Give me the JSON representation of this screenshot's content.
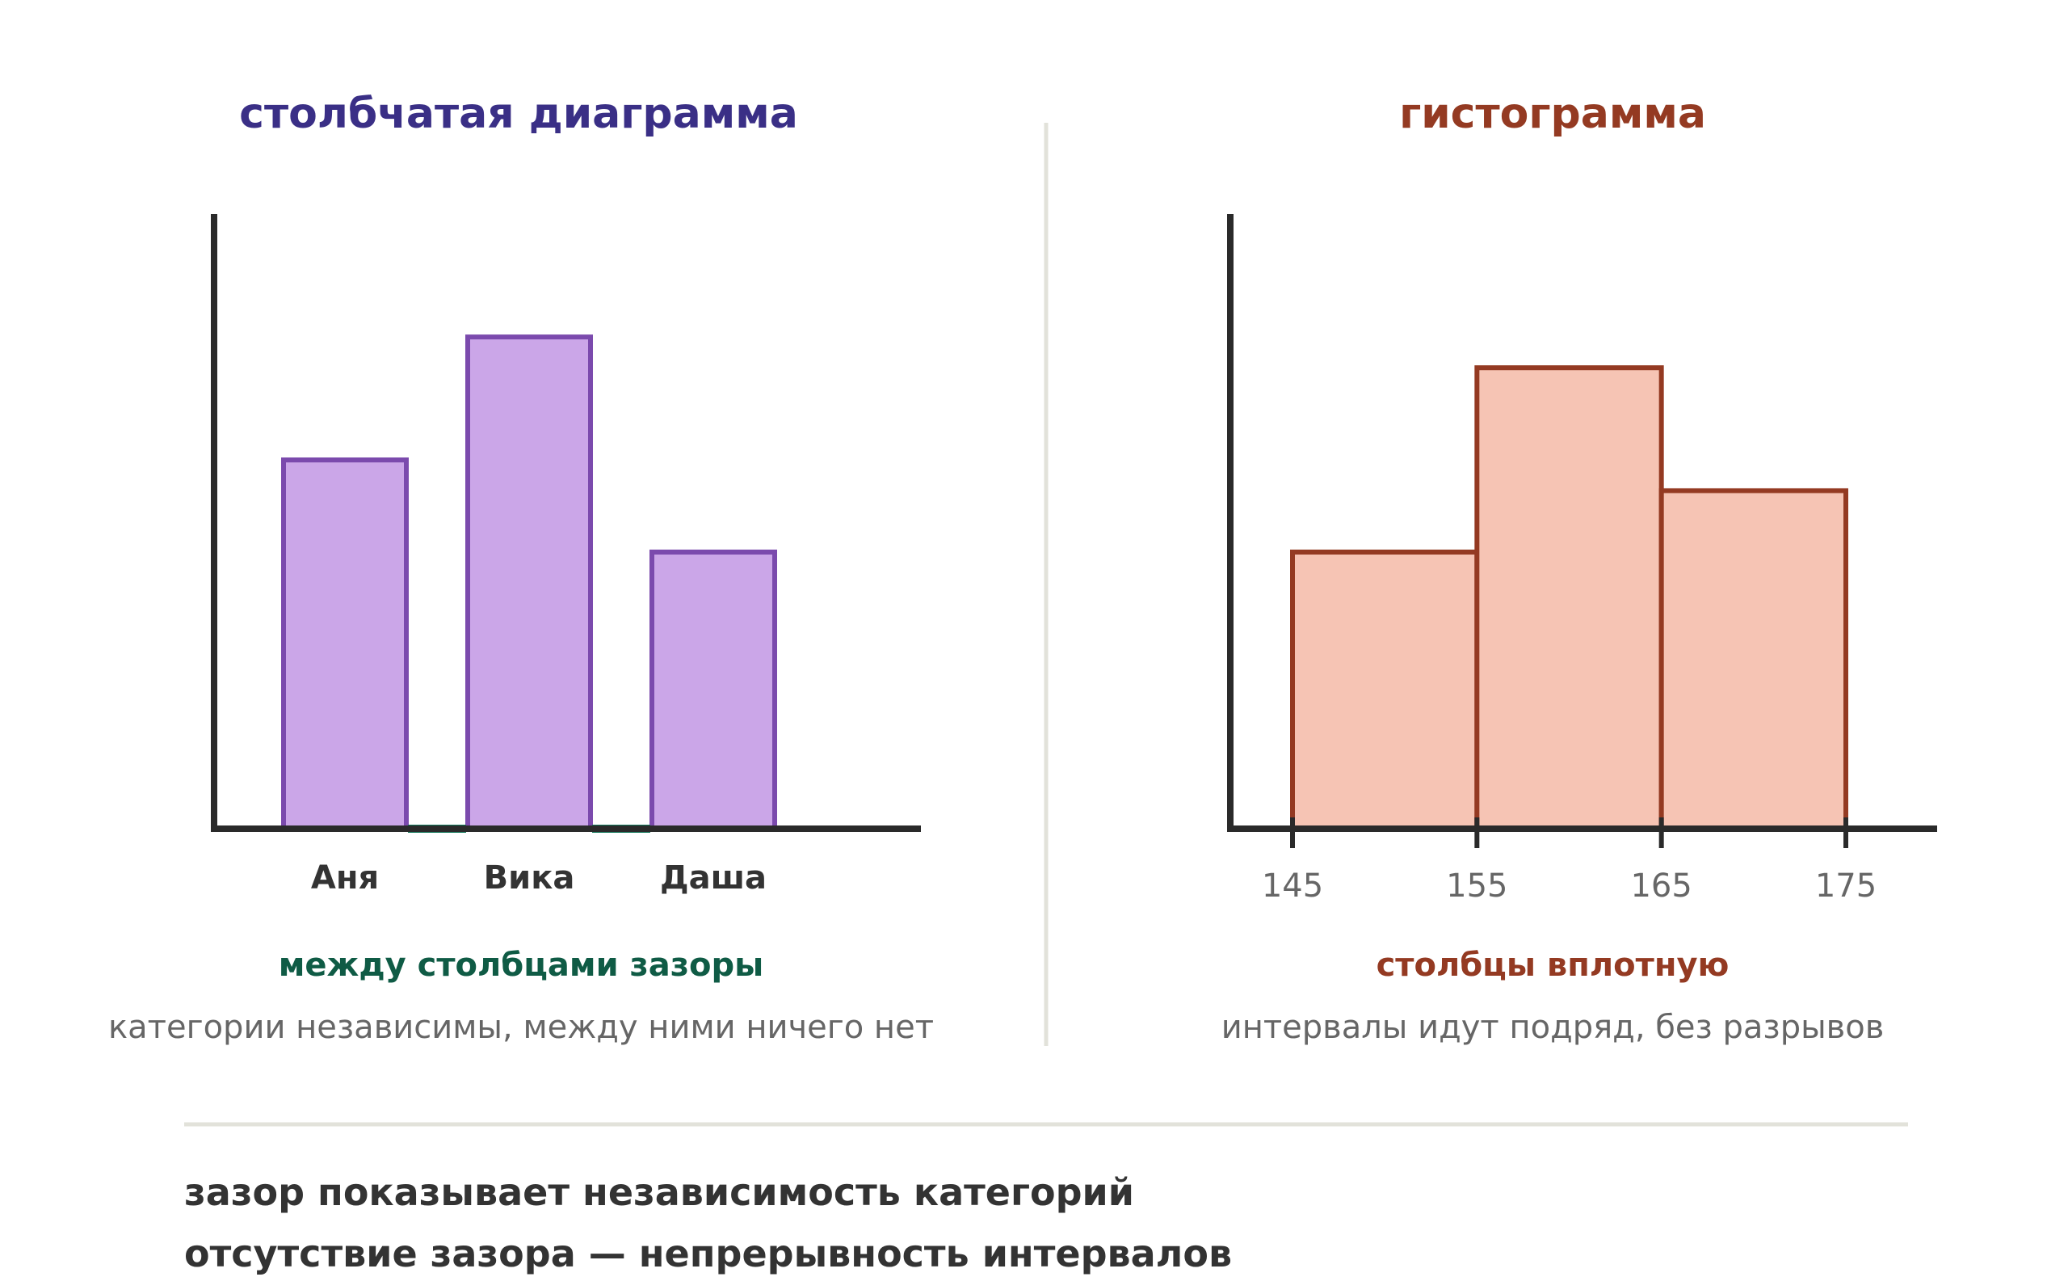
{
  "colors": {
    "bar_fill": "#cba6e8",
    "bar_stroke": "#7b4aad",
    "bar_title": "#3a2f86",
    "gap_marker": "#12775a",
    "gap_caption": "#0f5b45",
    "hist_fill": "#f6c4b4",
    "hist_stroke": "#943a22",
    "hist_title": "#943a22",
    "axis": "#2a2a2a",
    "muted_text": "#666666",
    "label_text": "#333333",
    "divider": "#e2e2da"
  },
  "bar_chart": {
    "title": "столбчатая диаграмма",
    "caption": "между столбцами зазоры",
    "subcaption": "категории независимы, между ними ничего нет",
    "chart_data": {
      "type": "bar",
      "categories": [
        "Аня",
        "Вика",
        "Даша"
      ],
      "values": [
        3,
        4,
        2.25
      ],
      "ylim": [
        0,
        5
      ],
      "gaps_between_bars": true
    }
  },
  "histogram": {
    "title": "гистограмма",
    "caption": "столбцы вплотную",
    "subcaption": "интервалы идут подряд, без разрывов",
    "chart_data": {
      "type": "bar",
      "bin_edges": [
        145,
        155,
        165,
        175
      ],
      "tick_labels": [
        "145",
        "155",
        "165",
        "175"
      ],
      "values": [
        2.25,
        3.75,
        2.75
      ],
      "ylim": [
        0,
        5
      ],
      "gaps_between_bars": false
    }
  },
  "takeaway": {
    "line1": "зазор показывает независимость категорий",
    "line2": "отсутствие зазора — непрерывность интервалов"
  }
}
